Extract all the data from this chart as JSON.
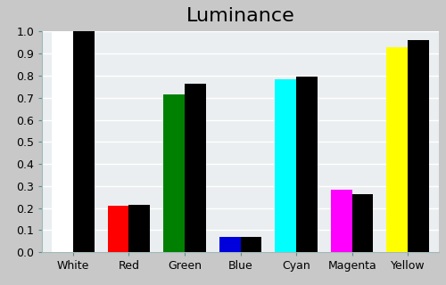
{
  "title": "Luminance",
  "categories": [
    "White",
    "Red",
    "Green",
    "Blue",
    "Cyan",
    "Magenta",
    "Yellow"
  ],
  "measured_values": [
    1.0,
    0.21,
    0.715,
    0.07,
    0.785,
    0.285,
    0.928
  ],
  "reference_values": [
    1.0,
    0.215,
    0.762,
    0.068,
    0.795,
    0.262,
    0.96
  ],
  "measured_colors": [
    "#ffffff",
    "#ff0000",
    "#008000",
    "#0000dd",
    "#00ffff",
    "#ff00ff",
    "#ffff00"
  ],
  "reference_color": "#000000",
  "background_color": "#c8c8c8",
  "plot_bg_color": "#eaeef0",
  "ylim": [
    0.0,
    1.0
  ],
  "yticks": [
    0.0,
    0.1,
    0.2,
    0.3,
    0.4,
    0.5,
    0.6,
    0.7,
    0.8,
    0.9,
    1.0
  ],
  "bar_width": 0.38,
  "title_fontsize": 16,
  "tick_fontsize": 9,
  "grid_color": "#ffffff",
  "grid_linewidth": 1.0,
  "figsize": [
    5.0,
    3.2
  ],
  "dpi": 100
}
